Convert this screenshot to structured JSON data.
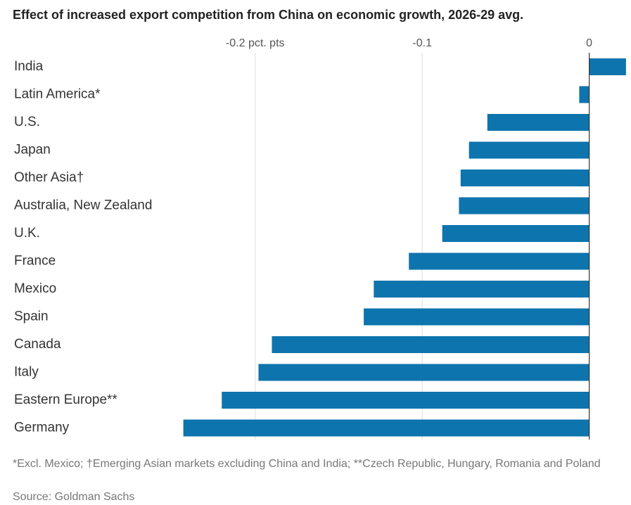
{
  "chart_data": {
    "type": "bar",
    "orientation": "horizontal",
    "title": "Effect of increased export competition from China on economic growth, 2026-29 avg.",
    "categories": [
      "India",
      "Latin America*",
      "U.S.",
      "Japan",
      "Other Asia†",
      "Australia, New Zealand",
      "U.K.",
      "France",
      "Mexico",
      "Spain",
      "Canada",
      "Italy",
      "Eastern Europe**",
      "Germany"
    ],
    "values": [
      0.022,
      -0.006,
      -0.061,
      -0.072,
      -0.077,
      -0.078,
      -0.088,
      -0.108,
      -0.129,
      -0.135,
      -0.19,
      -0.198,
      -0.22,
      -0.243
    ],
    "color": "#0e74ad",
    "xlim": [
      -0.25,
      0.025
    ],
    "xticks": [
      {
        "value": -0.2,
        "label": "-0.2 pct. pts"
      },
      -0.1,
      0
    ],
    "grid": true,
    "footnote": "*Excl. Mexico; †Emerging Asian markets excluding China and India; **Czech Republic, Hungary, Romania and Poland",
    "source": "Source: Goldman Sachs"
  }
}
